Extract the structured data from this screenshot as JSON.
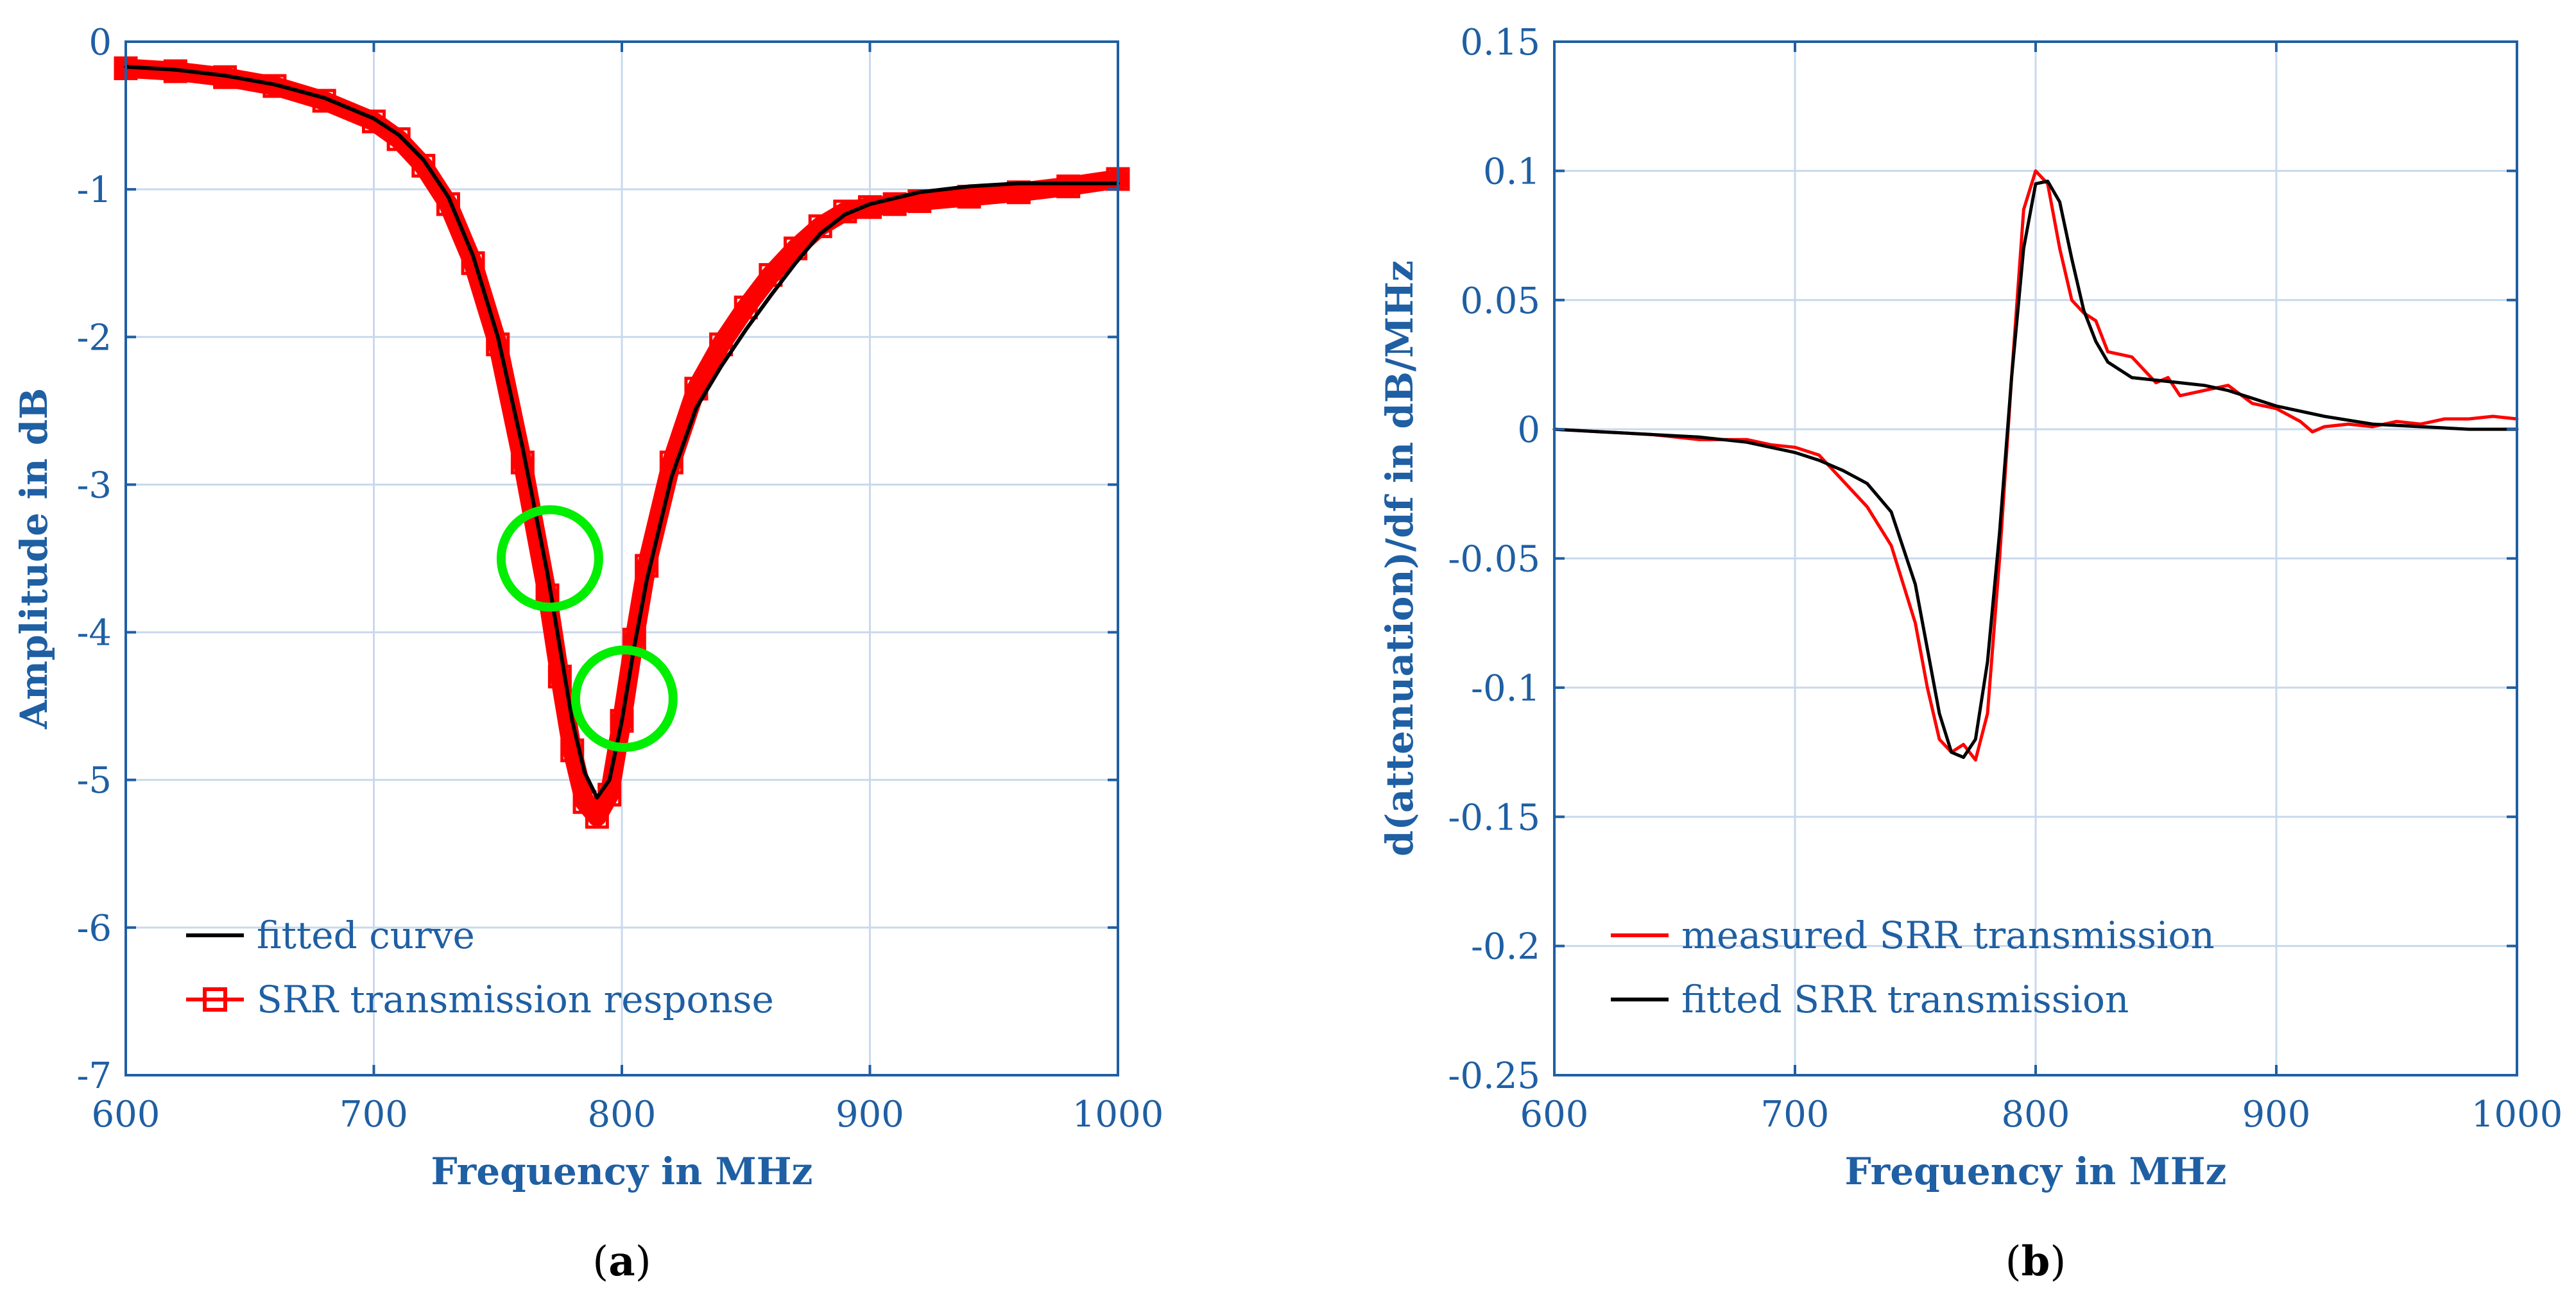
{
  "chart_data": [
    {
      "id": "a",
      "type": "line",
      "panel_label": "a",
      "xlabel": "Frequency in MHz",
      "ylabel": "Amplitude in dB",
      "xlim": [
        600,
        1000
      ],
      "ylim": [
        -7,
        0
      ],
      "xticks": [
        600,
        700,
        800,
        900,
        1000
      ],
      "yticks": [
        0,
        -1,
        -2,
        -3,
        -4,
        -5,
        -6,
        -7
      ],
      "xtick_labels": [
        "600",
        "700",
        "800",
        "900",
        "1000"
      ],
      "ytick_labels": [
        "0",
        "-1",
        "-2",
        "-3",
        "-4",
        "-5",
        "-6",
        "-7"
      ],
      "grid": true,
      "legend_position": "bottom-left",
      "series": [
        {
          "name": "fitted curve",
          "color": "#000000",
          "marker": "none",
          "x": [
            600,
            620,
            640,
            660,
            680,
            700,
            710,
            720,
            730,
            740,
            750,
            760,
            770,
            775,
            780,
            785,
            790,
            795,
            800,
            805,
            810,
            820,
            830,
            840,
            850,
            860,
            870,
            880,
            890,
            900,
            920,
            940,
            960,
            980,
            1000
          ],
          "y": [
            -0.17,
            -0.19,
            -0.23,
            -0.29,
            -0.38,
            -0.52,
            -0.63,
            -0.8,
            -1.05,
            -1.45,
            -2.0,
            -2.75,
            -3.6,
            -4.1,
            -4.6,
            -4.95,
            -5.12,
            -5.0,
            -4.6,
            -4.1,
            -3.65,
            -2.95,
            -2.48,
            -2.2,
            -1.95,
            -1.72,
            -1.5,
            -1.3,
            -1.17,
            -1.1,
            -1.02,
            -0.98,
            -0.96,
            -0.96,
            -0.96
          ]
        },
        {
          "name": "SRR transmission response",
          "color": "#ff0000",
          "marker": "square",
          "x": [
            600,
            620,
            640,
            660,
            680,
            700,
            710,
            720,
            730,
            740,
            750,
            760,
            770,
            775,
            780,
            785,
            790,
            795,
            800,
            805,
            810,
            820,
            830,
            840,
            850,
            860,
            870,
            880,
            890,
            900,
            910,
            920,
            940,
            960,
            980,
            1000
          ],
          "y": [
            -0.18,
            -0.2,
            -0.24,
            -0.3,
            -0.4,
            -0.54,
            -0.66,
            -0.84,
            -1.1,
            -1.5,
            -2.05,
            -2.85,
            -3.75,
            -4.3,
            -4.8,
            -5.15,
            -5.25,
            -5.1,
            -4.6,
            -4.05,
            -3.55,
            -2.85,
            -2.35,
            -2.05,
            -1.8,
            -1.58,
            -1.4,
            -1.25,
            -1.15,
            -1.12,
            -1.1,
            -1.08,
            -1.05,
            -1.02,
            -0.98,
            -0.93
          ]
        }
      ],
      "annotations": [
        {
          "shape": "circle",
          "color": "#00ee00",
          "x": 771,
          "y": -3.5
        },
        {
          "shape": "circle",
          "color": "#00ee00",
          "x": 801,
          "y": -4.45
        }
      ]
    },
    {
      "id": "b",
      "type": "line",
      "panel_label": "b",
      "xlabel": "Frequency in MHz",
      "ylabel": "d(attenuation)/df in dB/MHz",
      "xlim": [
        600,
        1000
      ],
      "ylim": [
        -0.25,
        0.15
      ],
      "xticks": [
        600,
        700,
        800,
        900,
        1000
      ],
      "yticks": [
        0.15,
        0.1,
        0.05,
        0,
        -0.05,
        -0.1,
        -0.15,
        -0.2,
        -0.25
      ],
      "xtick_labels": [
        "600",
        "700",
        "800",
        "900",
        "1000"
      ],
      "ytick_labels": [
        "0.15",
        "0.1",
        "0.05",
        "0",
        "-0.05",
        "-0.1",
        "-0.15",
        "-0.2",
        "-0.25"
      ],
      "grid": true,
      "legend_position": "bottom-left",
      "series": [
        {
          "name": "measured SRR transmission",
          "color": "#ff0000",
          "x": [
            600,
            620,
            640,
            660,
            680,
            690,
            700,
            710,
            720,
            730,
            740,
            750,
            755,
            760,
            765,
            770,
            775,
            780,
            785,
            790,
            795,
            800,
            805,
            810,
            815,
            820,
            825,
            830,
            840,
            850,
            855,
            860,
            870,
            880,
            890,
            900,
            910,
            915,
            920,
            930,
            940,
            950,
            960,
            970,
            980,
            990,
            1000
          ],
          "y": [
            0,
            -0.001,
            -0.002,
            -0.004,
            -0.004,
            -0.006,
            -0.007,
            -0.01,
            -0.02,
            -0.03,
            -0.045,
            -0.075,
            -0.1,
            -0.12,
            -0.125,
            -0.122,
            -0.128,
            -0.11,
            -0.05,
            0.02,
            0.085,
            0.1,
            0.095,
            0.07,
            0.05,
            0.045,
            0.042,
            0.03,
            0.028,
            0.018,
            0.02,
            0.013,
            0.015,
            0.017,
            0.01,
            0.008,
            0.003,
            -0.001,
            0.001,
            0.002,
            0.001,
            0.003,
            0.002,
            0.004,
            0.004,
            0.005,
            0.004
          ]
        },
        {
          "name": "fitted SRR transmission",
          "color": "#000000",
          "x": [
            600,
            620,
            640,
            660,
            680,
            700,
            710,
            720,
            730,
            740,
            750,
            755,
            760,
            765,
            770,
            775,
            780,
            785,
            790,
            795,
            800,
            805,
            810,
            815,
            820,
            825,
            830,
            840,
            850,
            860,
            870,
            880,
            890,
            900,
            920,
            940,
            960,
            980,
            1000
          ],
          "y": [
            0,
            -0.001,
            -0.002,
            -0.003,
            -0.005,
            -0.009,
            -0.012,
            -0.016,
            -0.021,
            -0.032,
            -0.06,
            -0.085,
            -0.11,
            -0.125,
            -0.127,
            -0.12,
            -0.09,
            -0.04,
            0.02,
            0.07,
            0.095,
            0.096,
            0.088,
            0.066,
            0.046,
            0.034,
            0.026,
            0.02,
            0.019,
            0.018,
            0.017,
            0.015,
            0.012,
            0.009,
            0.005,
            0.002,
            0.001,
            0.0,
            0.0
          ]
        }
      ]
    }
  ]
}
